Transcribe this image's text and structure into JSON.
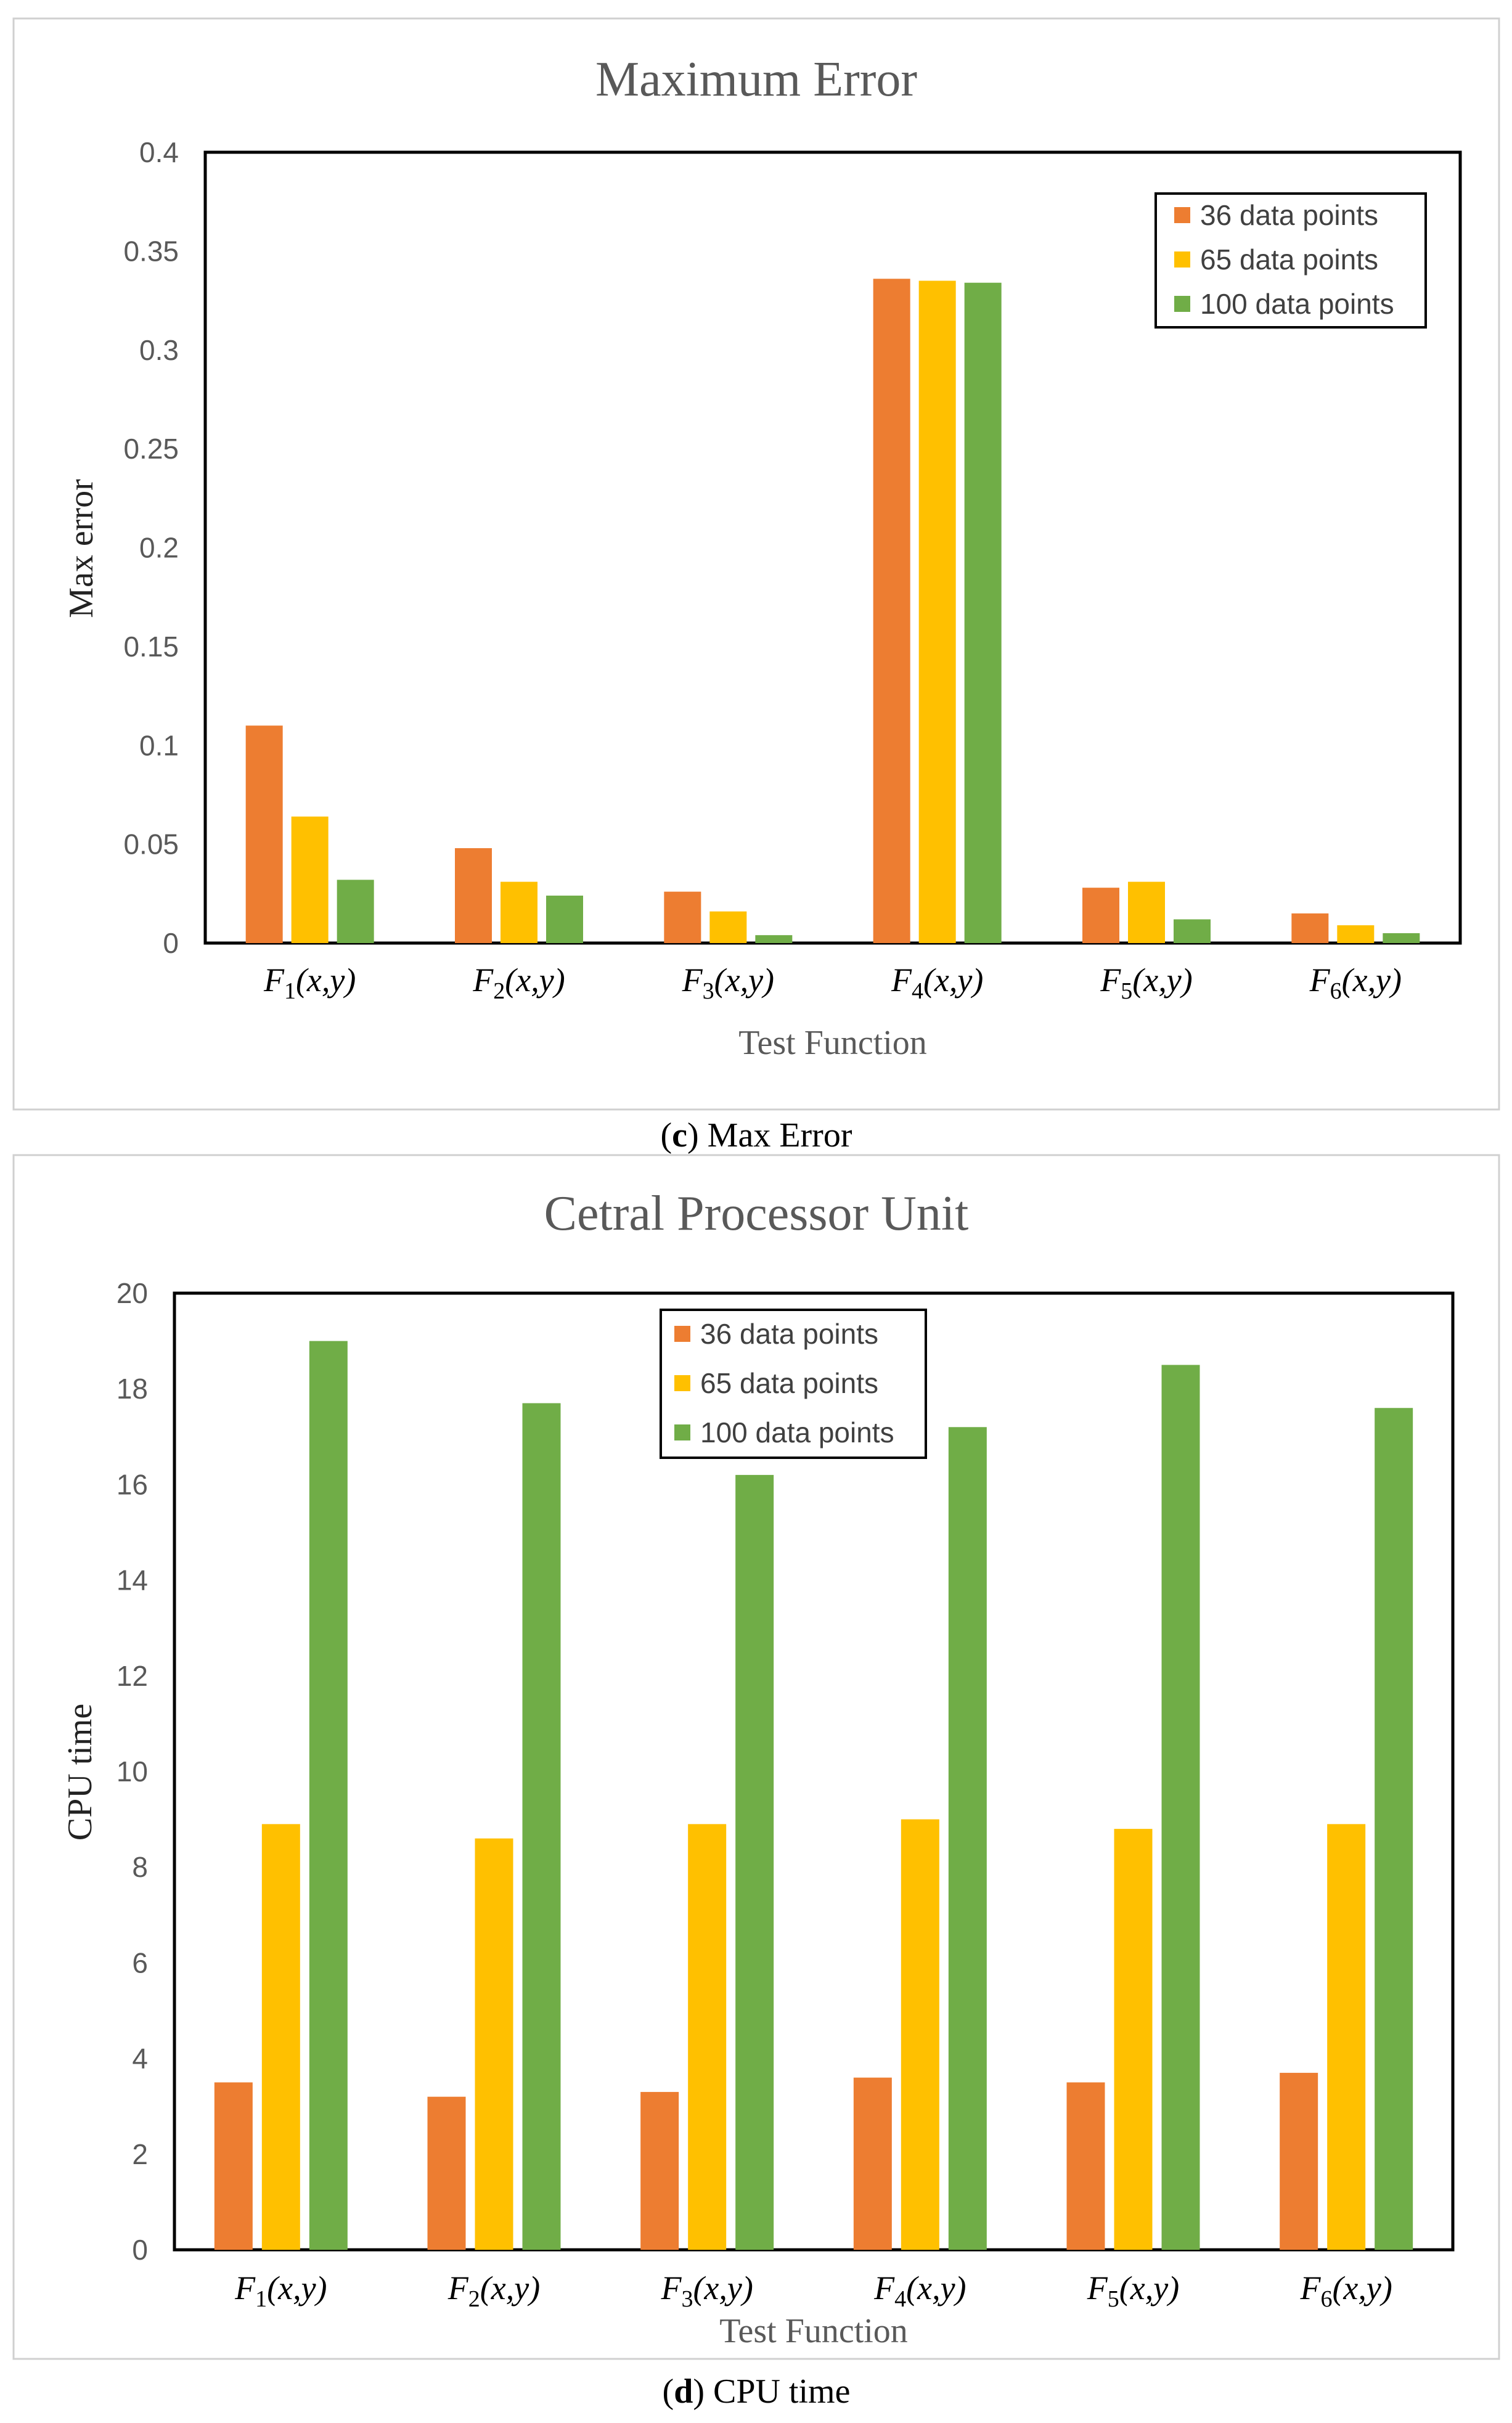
{
  "charts": [
    {
      "caption": {
        "letter": "c",
        "text": ") Max Error",
        "open": "("
      },
      "chart_data": {
        "type": "bar",
        "title": "Maximum Error",
        "xlabel": "Test Function",
        "ylabel": "Max error",
        "ylim": [
          0,
          0.4
        ],
        "yticks": [
          "0",
          "0.05",
          "0.1",
          "0.15",
          "0.2",
          "0.25",
          "0.3",
          "0.35",
          "0.4"
        ],
        "grid": false,
        "legend_position": "top-right",
        "categories": [
          {
            "name": "F",
            "sub": "1",
            "args": "(x,y)"
          },
          {
            "name": "F",
            "sub": "2",
            "args": "(x,y)"
          },
          {
            "name": "F",
            "sub": "3",
            "args": "(x,y)"
          },
          {
            "name": "F",
            "sub": "4",
            "args": "(x,y)"
          },
          {
            "name": "F",
            "sub": "5",
            "args": "(x,y)"
          },
          {
            "name": "F",
            "sub": "6",
            "args": "(x,y)"
          }
        ],
        "series": [
          {
            "name": "36 data points",
            "color": "#ED7D31",
            "values": [
              0.11,
              0.048,
              0.026,
              0.336,
              0.028,
              0.015
            ]
          },
          {
            "name": "65 data points",
            "color": "#FFC000",
            "values": [
              0.064,
              0.031,
              0.016,
              0.335,
              0.031,
              0.009
            ]
          },
          {
            "name": "100 data points",
            "color": "#70AD47",
            "values": [
              0.032,
              0.024,
              0.004,
              0.334,
              0.012,
              0.005
            ]
          }
        ]
      }
    },
    {
      "caption": {
        "letter": "d",
        "text": ") CPU time",
        "open": "("
      },
      "chart_data": {
        "type": "bar",
        "title": "Cetral Processor Unit",
        "xlabel": "Test Function",
        "ylabel": "CPU time",
        "ylim": [
          0,
          20
        ],
        "yticks": [
          "0",
          "2",
          "4",
          "6",
          "8",
          "10",
          "12",
          "14",
          "16",
          "18",
          "20"
        ],
        "grid": false,
        "legend_position": "top-center",
        "categories": [
          {
            "name": "F",
            "sub": "1",
            "args": "(x,y)"
          },
          {
            "name": "F",
            "sub": "2",
            "args": "(x,y)"
          },
          {
            "name": "F",
            "sub": "3",
            "args": "(x,y)"
          },
          {
            "name": "F",
            "sub": "4",
            "args": "(x,y)"
          },
          {
            "name": "F",
            "sub": "5",
            "args": "(x,y)"
          },
          {
            "name": "F",
            "sub": "6",
            "args": "(x,y)"
          }
        ],
        "series": [
          {
            "name": "36 data points",
            "color": "#ED7D31",
            "values": [
              3.5,
              3.2,
              3.3,
              3.6,
              3.5,
              3.7
            ]
          },
          {
            "name": "65 data points",
            "color": "#FFC000",
            "values": [
              8.9,
              8.6,
              8.9,
              9.0,
              8.8,
              8.9
            ]
          },
          {
            "name": "100 data points",
            "color": "#70AD47",
            "values": [
              19.0,
              17.7,
              16.2,
              17.2,
              18.5,
              17.6
            ]
          }
        ]
      }
    }
  ]
}
